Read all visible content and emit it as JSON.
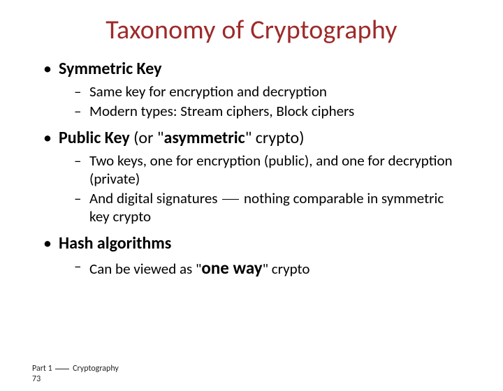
{
  "title": "Taxonomy of Cryptography",
  "title_color": "#9e2a2a",
  "bullets": {
    "b1": {
      "label": "Symmetric Key"
    },
    "b1s1": "Same key for encryption and decryption",
    "b1s2": "Modern types: Stream ciphers, Block ciphers",
    "b2": {
      "label_bold": "Public Key",
      "paren_open": " (or \"",
      "asym": "asymmetric",
      "paren_close": "\" crypto)"
    },
    "b2s1": "Two keys, one for encryption (public), and one for decryption (private)",
    "b2s2a": "And digital signatures ",
    "b2s2b": " nothing comparable in symmetric key crypto",
    "b3": {
      "label": "Hash algorithms"
    },
    "b3s1a": "Can be viewed as \"",
    "b3s1_bold": "one way",
    "b3s1b": "\" crypto"
  },
  "footer": {
    "part_a": "Part 1 ",
    "part_b": " Cryptography",
    "page": "73"
  },
  "styling": {
    "title_fontsize": 38,
    "body_fontsize_l1": 24,
    "body_fontsize_l2": 21,
    "accent_color": "#9e2a2a",
    "background": "#ffffff",
    "text_color": "#000000",
    "slide_width": 720,
    "slide_height": 540
  }
}
